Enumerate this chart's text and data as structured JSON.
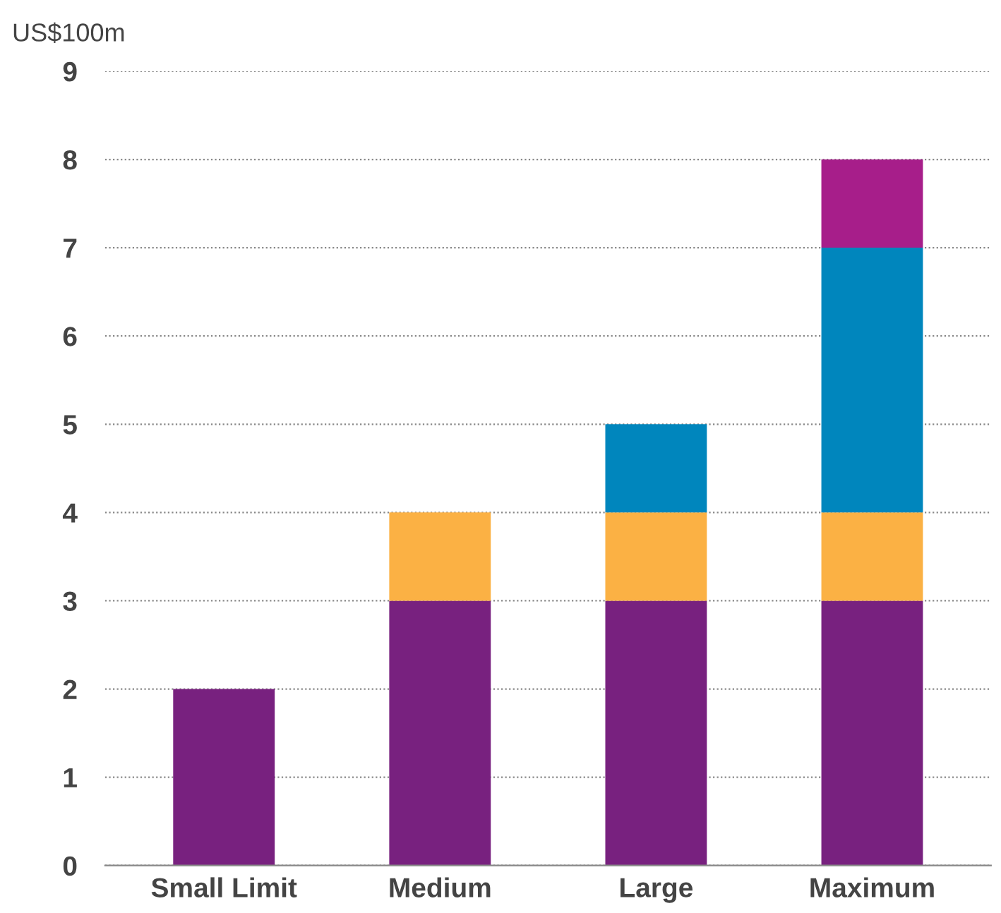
{
  "chart_data": {
    "type": "bar",
    "stacked": true,
    "ylabel": "US$100m",
    "categories": [
      "Small Limit",
      "Medium",
      "Large",
      "Maximum"
    ],
    "series": [
      {
        "color": "#78217f",
        "values": [
          2,
          3,
          3,
          3
        ]
      },
      {
        "color": "#fbb144",
        "values": [
          null,
          1,
          1,
          1
        ]
      },
      {
        "color": "#0086bd",
        "values": [
          null,
          null,
          1,
          3
        ]
      },
      {
        "color": "#a71e8a",
        "values": [
          null,
          null,
          null,
          1
        ]
      }
    ],
    "ylim": [
      0,
      9
    ],
    "yticks": [
      0,
      1,
      2,
      3,
      4,
      5,
      6,
      7,
      8,
      9
    ],
    "grid": "y",
    "legend": false
  }
}
